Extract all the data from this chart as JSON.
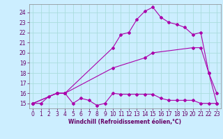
{
  "title": "",
  "xlabel": "Windchill (Refroidissement éolien,°C)",
  "ylabel": "",
  "bg_color": "#cceeff",
  "grid_color": "#aadddd",
  "line_color": "#aa00aa",
  "xlim": [
    -0.5,
    23.5
  ],
  "ylim": [
    14.5,
    24.8
  ],
  "xticks": [
    0,
    1,
    2,
    3,
    4,
    5,
    6,
    7,
    8,
    9,
    10,
    11,
    12,
    13,
    14,
    15,
    16,
    17,
    18,
    19,
    20,
    21,
    22,
    23
  ],
  "yticks": [
    15,
    16,
    17,
    18,
    19,
    20,
    21,
    22,
    23,
    24
  ],
  "line1_x": [
    0,
    1,
    2,
    3,
    4,
    5,
    6,
    7,
    8,
    9,
    10,
    11,
    12,
    13,
    14,
    15,
    16,
    17,
    18,
    19,
    20,
    21,
    22,
    23
  ],
  "line1_y": [
    15,
    15,
    15.7,
    16,
    16,
    15,
    15.5,
    15.3,
    14.8,
    15,
    16,
    15.9,
    15.9,
    15.9,
    15.9,
    15.9,
    15.5,
    15.3,
    15.3,
    15.3,
    15.3,
    15,
    15,
    15
  ],
  "line2_x": [
    0,
    3,
    4,
    10,
    14,
    15,
    20,
    21,
    22,
    23
  ],
  "line2_y": [
    15,
    16,
    16,
    18.5,
    19.5,
    20,
    20.5,
    20.5,
    18,
    15
  ],
  "line3_x": [
    0,
    3,
    4,
    10,
    11,
    12,
    13,
    14,
    15,
    16,
    17,
    18,
    19,
    20,
    21,
    22,
    23
  ],
  "line3_y": [
    15,
    16,
    16,
    20.5,
    21.8,
    22,
    23.3,
    24.1,
    24.5,
    23.5,
    23,
    22.8,
    22.5,
    21.8,
    22,
    18,
    16
  ],
  "tick_fontsize": 5.5,
  "xlabel_fontsize": 5.5,
  "marker_size": 2.0
}
